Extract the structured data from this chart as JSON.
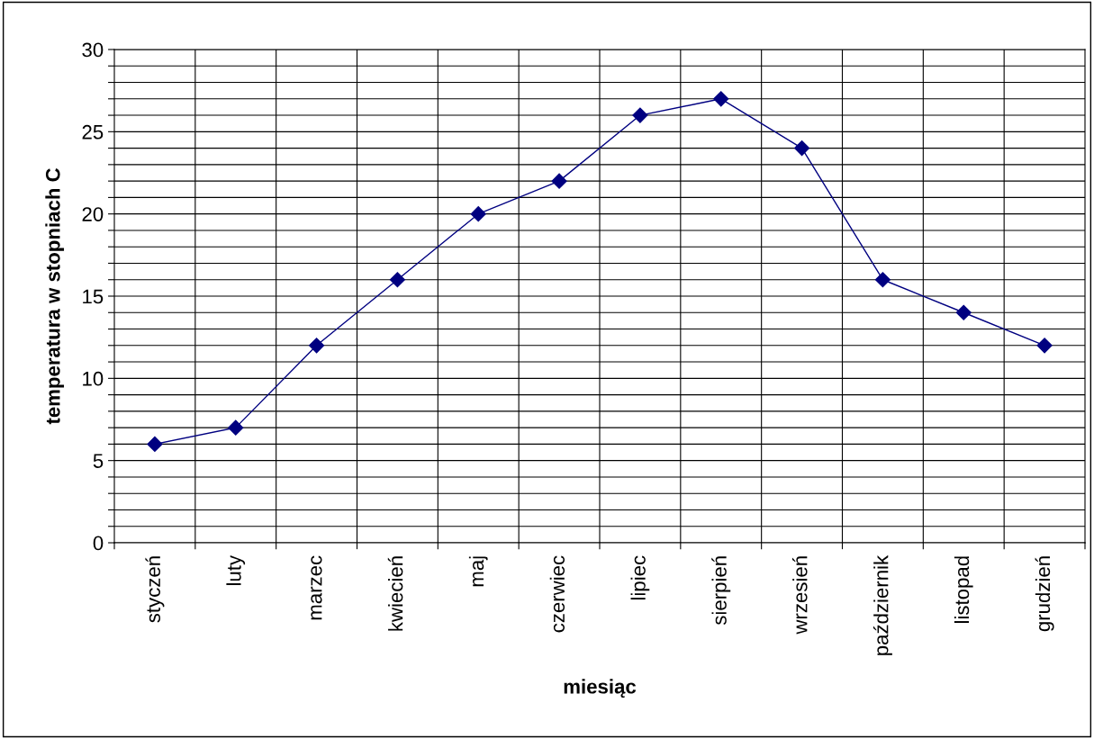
{
  "chart_data": {
    "type": "line",
    "xlabel": "miesiąc",
    "ylabel": "temperatura w stopniach C",
    "categories": [
      "styczeń",
      "luty",
      "marzec",
      "kwiecień",
      "maj",
      "czerwiec",
      "lipiec",
      "sierpień",
      "wrzesień",
      "październik",
      "listopad",
      "grudzień"
    ],
    "series": [
      {
        "color": "#000080",
        "values": [
          6,
          7,
          12,
          16,
          20,
          22,
          26,
          27,
          24,
          16,
          14,
          12
        ]
      }
    ],
    "ylim": [
      0,
      30
    ],
    "yticks": [
      0,
      {
        "value": 1,
        "label": null
      },
      {
        "value": 2,
        "label": null
      },
      {
        "value": 3,
        "label": null
      },
      {
        "value": 4,
        "label": null
      },
      5,
      {
        "value": 6,
        "label": null
      },
      {
        "value": 7,
        "label": null
      },
      {
        "value": 8,
        "label": null
      },
      {
        "value": 9,
        "label": null
      },
      10,
      {
        "value": 11,
        "label": null
      },
      {
        "value": 12,
        "label": null
      },
      {
        "value": 13,
        "label": null
      },
      {
        "value": 14,
        "label": null
      },
      15,
      {
        "value": 16,
        "label": null
      },
      {
        "value": 17,
        "label": null
      },
      {
        "value": 18,
        "label": null
      },
      {
        "value": 19,
        "label": null
      },
      20,
      {
        "value": 21,
        "label": null
      },
      {
        "value": 22,
        "label": null
      },
      {
        "value": 23,
        "label": null
      },
      {
        "value": 24,
        "label": null
      },
      25,
      {
        "value": 26,
        "label": null
      },
      {
        "value": 27,
        "label": null
      },
      {
        "value": 28,
        "label": null
      },
      {
        "value": 29,
        "label": null
      },
      30
    ],
    "grid": true,
    "marker": "diamond",
    "line_style": "solid",
    "legend": false
  }
}
